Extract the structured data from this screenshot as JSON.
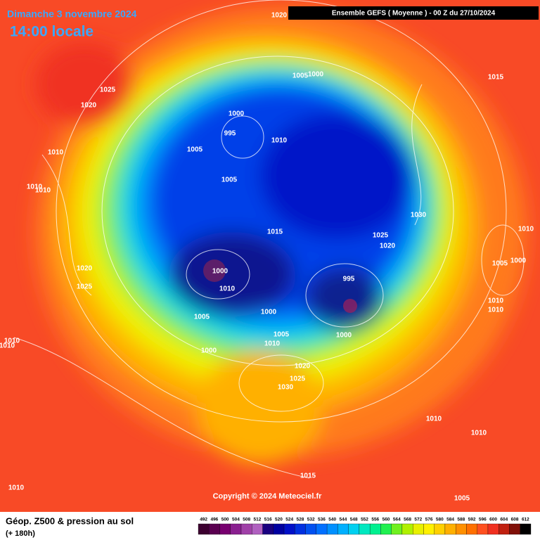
{
  "header": {
    "date": "Dimanche 3 novembre 2024",
    "time": "14:00 locale",
    "run": "Ensemble GEFS  ( Moyenne )  -  00 Z du 27/10/2024"
  },
  "map": {
    "isobar_labels": [
      1020,
      1025,
      1020,
      1005,
      1000,
      1015,
      1000,
      995,
      1010,
      1005,
      1010,
      1005,
      1010,
      1010,
      1030,
      1010,
      1015,
      1025,
      1020,
      1005,
      1000,
      1000,
      1020,
      995,
      1025,
      1010,
      1010,
      1010,
      1000,
      1005,
      1005,
      1000,
      1010,
      1010,
      1010,
      1000,
      1020,
      1025,
      1030,
      1010,
      1010,
      1015,
      1010,
      1005
    ],
    "copyright": "Copyright © 2024 Meteociel.fr"
  },
  "footer": {
    "title": "Géop. Z500 & pression au sol",
    "lead": "(+ 180h)"
  },
  "scale": {
    "values": [
      492,
      496,
      500,
      504,
      508,
      512,
      516,
      520,
      524,
      528,
      532,
      536,
      540,
      544,
      548,
      552,
      556,
      560,
      564,
      568,
      572,
      576,
      580,
      584,
      588,
      592,
      596,
      600,
      604,
      608,
      612
    ],
    "colors": [
      "#3c0030",
      "#5a0050",
      "#780070",
      "#8a2090",
      "#a040a8",
      "#b060c0",
      "#1a0080",
      "#0000a0",
      "#0010c8",
      "#0030e0",
      "#0050f0",
      "#0070ff",
      "#0090ff",
      "#00b0ff",
      "#00d0f0",
      "#00e8c0",
      "#00f090",
      "#20f050",
      "#70f020",
      "#b0f000",
      "#e8f000",
      "#fff000",
      "#ffd000",
      "#ffb000",
      "#ff9000",
      "#ff7000",
      "#ff5020",
      "#f03020",
      "#c02010",
      "#801008",
      "#000000"
    ]
  }
}
